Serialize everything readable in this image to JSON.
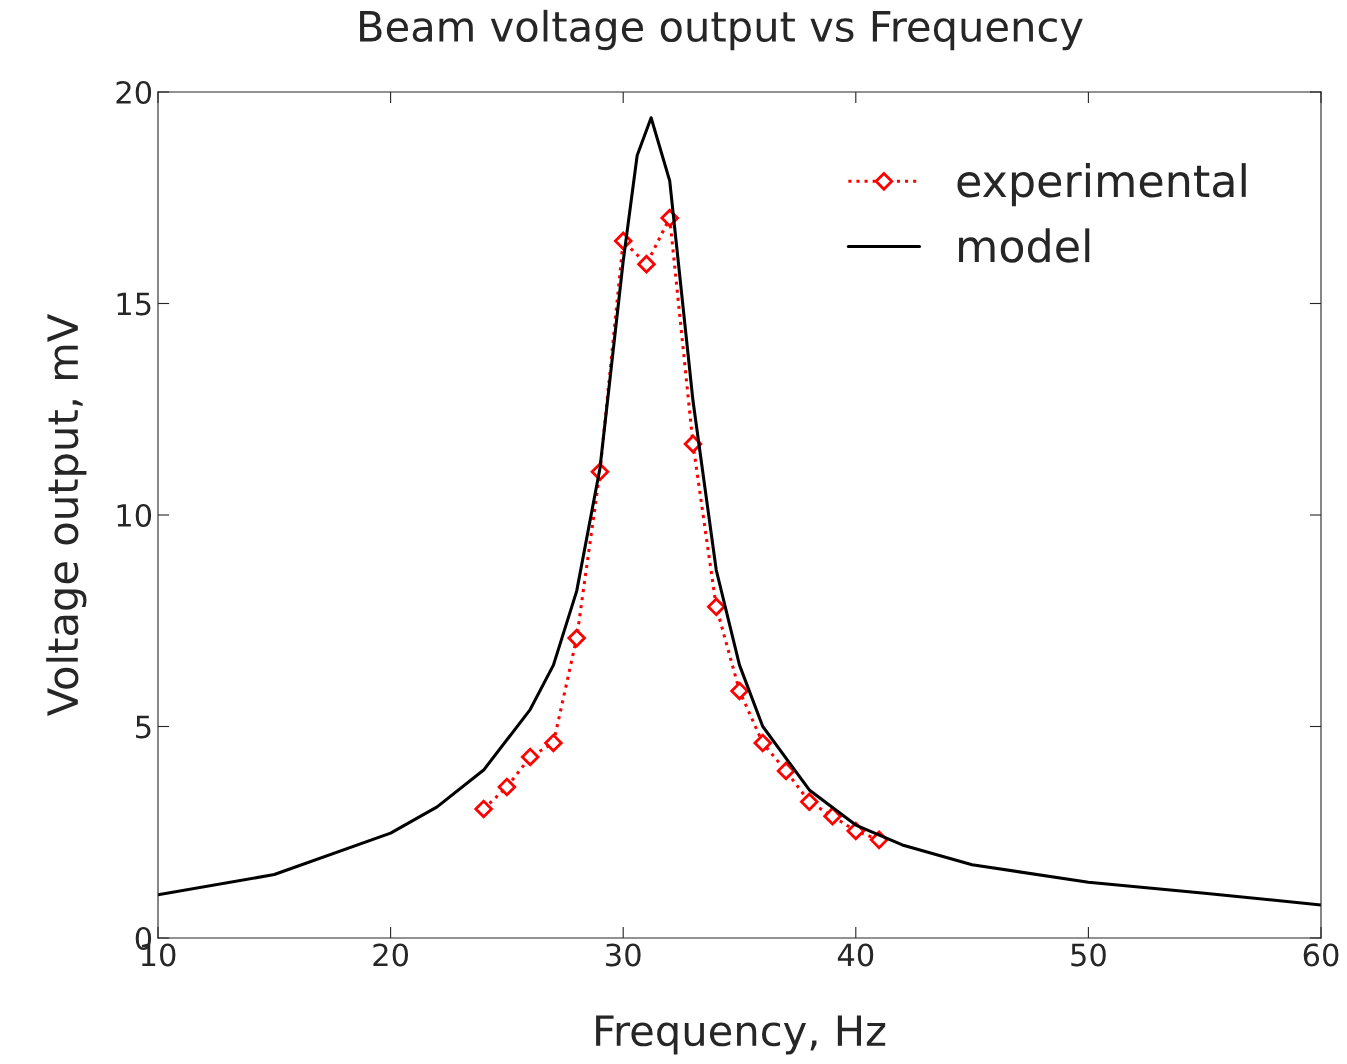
{
  "chart_data": {
    "type": "line",
    "title": "Beam voltage output vs Frequency",
    "xlabel": "Frequency, Hz",
    "ylabel": "Voltage output, mV",
    "xlim": [
      10,
      60
    ],
    "xticks": [
      10,
      20,
      30,
      40,
      50,
      60
    ],
    "ylim": [
      0,
      20
    ],
    "yticks": [
      0,
      5,
      10,
      15,
      20
    ],
    "grid": false,
    "legend": "top right",
    "series": [
      {
        "name": "experimental",
        "color": "#ff0000",
        "marker": "diamond",
        "line_style": "dotted",
        "x": [
          24,
          25,
          26,
          27,
          28,
          29,
          30,
          31,
          32,
          33,
          34,
          35,
          36,
          37,
          38,
          39,
          40,
          41
        ],
        "values": [
          3.05,
          3.57,
          4.28,
          4.61,
          7.09,
          11.02,
          16.48,
          15.93,
          17.02,
          11.68,
          7.83,
          5.84,
          4.61,
          3.95,
          3.22,
          2.88,
          2.53,
          2.32
        ]
      },
      {
        "name": "model",
        "color": "#000000",
        "marker": "none",
        "line_style": "solid",
        "x": [
          10,
          15,
          20,
          22,
          24,
          26,
          27,
          28,
          29,
          30,
          30.6,
          31.2,
          32,
          33,
          34,
          35,
          36,
          38,
          40,
          42,
          45,
          50,
          55,
          60
        ],
        "values": [
          1.02,
          1.5,
          2.48,
          3.1,
          3.97,
          5.4,
          6.45,
          8.2,
          11.1,
          16.0,
          18.5,
          19.39,
          17.9,
          12.7,
          8.7,
          6.45,
          5.0,
          3.5,
          2.67,
          2.2,
          1.73,
          1.32,
          1.06,
          0.78
        ]
      }
    ]
  }
}
